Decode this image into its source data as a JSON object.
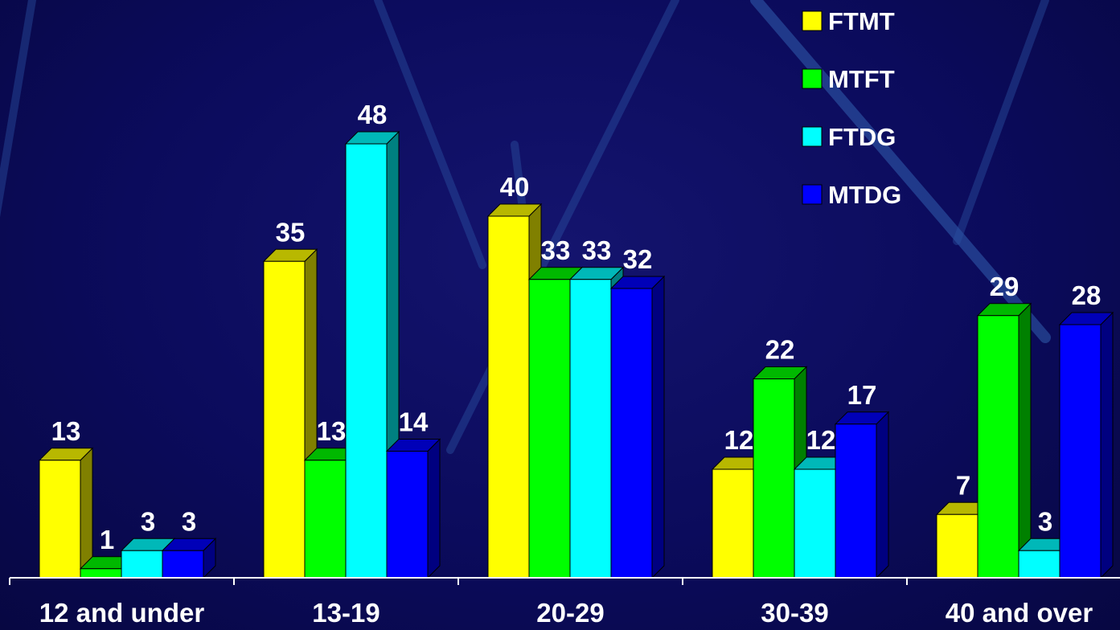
{
  "chart_data": {
    "type": "bar",
    "style": "3d-clustered",
    "title": "",
    "xlabel": "",
    "ylabel": "",
    "categories": [
      "12 and under",
      "13-19",
      "20-29",
      "30-39",
      "40 and over"
    ],
    "series": [
      {
        "name": "FTMT",
        "color": "#ffff00",
        "values": [
          13,
          35,
          40,
          12,
          7
        ]
      },
      {
        "name": "MTFT",
        "color": "#00ff00",
        "values": [
          1,
          13,
          33,
          22,
          29
        ]
      },
      {
        "name": "FTDG",
        "color": "#00ffff",
        "values": [
          3,
          48,
          33,
          12,
          3
        ]
      },
      {
        "name": "MTDG",
        "color": "#0000ff",
        "values": [
          3,
          14,
          32,
          17,
          28
        ]
      }
    ],
    "ylim": [
      0,
      50
    ],
    "grid": false,
    "legend_position": "top-right",
    "data_labels": true,
    "background_color": "#0b0b5a",
    "text_color": "#ffffff"
  }
}
